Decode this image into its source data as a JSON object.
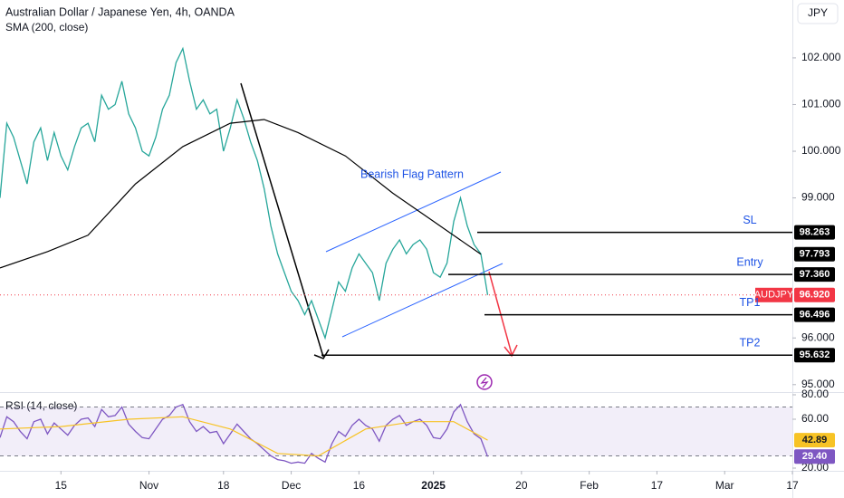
{
  "chart_data": [
    {
      "type": "line",
      "title": "Australian Dollar / Japanese Yen, 4h, OANDA",
      "currency": "JPY",
      "x": [
        -9,
        -8,
        -7,
        -6,
        -5,
        -4,
        -3,
        -2,
        -1,
        0,
        1,
        2,
        3,
        4,
        5,
        6,
        7,
        8,
        9,
        10,
        11,
        12,
        13,
        14,
        15,
        16,
        17,
        18,
        19,
        20,
        21,
        22,
        23,
        24,
        25,
        26,
        27,
        28,
        29,
        30,
        31,
        32,
        33,
        34,
        35,
        36,
        37,
        38,
        39,
        40,
        41,
        42,
        43,
        44,
        45,
        46,
        47,
        48,
        49,
        50,
        51,
        52,
        53,
        54,
        55,
        56,
        57,
        58,
        59,
        60,
        61,
        62,
        63
      ],
      "xlim": [
        -9,
        108
      ],
      "xticks": [
        {
          "value": 0,
          "label": "15"
        },
        {
          "value": 13,
          "label": "Nov"
        },
        {
          "value": 24,
          "label": "18"
        },
        {
          "value": 34,
          "label": "Dec"
        },
        {
          "value": 44,
          "label": "16"
        },
        {
          "value": 55,
          "label": "2025"
        },
        {
          "value": 68,
          "label": "20"
        },
        {
          "value": 78,
          "label": "Feb"
        },
        {
          "value": 88,
          "label": "17"
        },
        {
          "value": 98,
          "label": "Mar"
        },
        {
          "value": 108,
          "label": "17"
        }
      ],
      "ylim": [
        94.86,
        103.24
      ],
      "yticks": [
        {
          "value": 95,
          "label": "95.000"
        },
        {
          "value": 96,
          "label": "96.000"
        },
        {
          "value": 99,
          "label": "99.000"
        },
        {
          "value": 100,
          "label": "100.000"
        },
        {
          "value": 101,
          "label": "101.000"
        },
        {
          "value": 102,
          "label": "102.000"
        }
      ],
      "series": [
        {
          "color": "#26a69a",
          "values": [
            99.0,
            100.6,
            100.3,
            99.8,
            99.3,
            100.2,
            100.5,
            99.8,
            100.4,
            99.9,
            99.6,
            100.1,
            100.5,
            100.6,
            100.2,
            101.2,
            100.9,
            101.0,
            101.5,
            100.8,
            100.5,
            100.0,
            99.9,
            100.3,
            100.9,
            101.2,
            101.9,
            102.2,
            101.5,
            100.9,
            101.1,
            100.8,
            100.9,
            100.0,
            100.5,
            101.1,
            100.7,
            100.2,
            99.8,
            99.2,
            98.4,
            97.8,
            97.4,
            97.0,
            96.8,
            96.5,
            96.8,
            96.4,
            96.0,
            96.6,
            97.2,
            97.0,
            97.5,
            97.8,
            97.6,
            97.4,
            96.8,
            97.6,
            97.9,
            98.1,
            97.8,
            98.0,
            98.1,
            97.9,
            97.4,
            97.3,
            97.6,
            98.5,
            99.0,
            98.4,
            98.0,
            97.8,
            96.92
          ]
        },
        {
          "name": "SMA (200, close)",
          "color": "#000000",
          "x": [
            -9,
            -2,
            4,
            11,
            18,
            25,
            30,
            35,
            42,
            49,
            55,
            62
          ],
          "values": [
            97.5,
            97.85,
            98.2,
            99.3,
            100.1,
            100.6,
            100.68,
            100.4,
            99.9,
            99.1,
            98.5,
            97.793
          ],
          "value_labels": [
            null,
            null,
            null,
            null,
            null,
            null,
            null,
            null,
            null,
            null,
            null,
            "97.793"
          ]
        }
      ],
      "last_price": {
        "symbol": "AUDJPY",
        "value": 96.92,
        "value_label": "96.920",
        "color": "#f23645"
      },
      "pattern_label": "Bearish Flag Pattern",
      "levels": [
        {
          "label": "SL",
          "value": 98.263,
          "value_label": "98.263"
        },
        {
          "label": "Entry",
          "value": 97.36,
          "value_label": "97.360"
        },
        {
          "label": "TP1",
          "value": 96.496,
          "value_label": "96.496"
        },
        {
          "label": "TP2",
          "value": 95.632,
          "value_label": "95.632"
        }
      ]
    },
    {
      "type": "line",
      "title": "RSI (14, close)",
      "x": [
        -9,
        -8,
        -7,
        -6,
        -5,
        -4,
        -3,
        -2,
        -1,
        0,
        1,
        2,
        3,
        4,
        5,
        6,
        7,
        8,
        9,
        10,
        11,
        12,
        13,
        14,
        15,
        16,
        17,
        18,
        19,
        20,
        21,
        22,
        23,
        24,
        25,
        26,
        27,
        28,
        29,
        30,
        31,
        32,
        33,
        34,
        35,
        36,
        37,
        38,
        39,
        40,
        41,
        42,
        43,
        44,
        45,
        46,
        47,
        48,
        49,
        50,
        51,
        52,
        53,
        54,
        55,
        56,
        57,
        58,
        59,
        60,
        61,
        62,
        63
      ],
      "xlim": [
        -9,
        108
      ],
      "ylim": [
        20,
        80
      ],
      "yticks": [
        {
          "value": 20,
          "label": "20.00"
        },
        {
          "value": 60,
          "label": "60.00"
        },
        {
          "value": 80,
          "label": "80.00"
        }
      ],
      "bands": [
        30,
        70
      ],
      "series": [
        {
          "color": "#7e57c2",
          "values": [
            45,
            62,
            58,
            50,
            44,
            58,
            60,
            48,
            57,
            52,
            47,
            55,
            60,
            61,
            54,
            68,
            62,
            63,
            70,
            56,
            50,
            45,
            44,
            52,
            60,
            63,
            70,
            72,
            58,
            50,
            54,
            49,
            50,
            40,
            48,
            56,
            50,
            44,
            40,
            35,
            30,
            27,
            26,
            24,
            25,
            24,
            32,
            28,
            25,
            40,
            50,
            46,
            55,
            60,
            55,
            52,
            42,
            55,
            60,
            63,
            55,
            58,
            60,
            55,
            45,
            44,
            52,
            66,
            72,
            58,
            48,
            44,
            29.4
          ],
          "last_label": "29.40"
        },
        {
          "color": "#f7c325",
          "x": [
            -9,
            0,
            10,
            18,
            25,
            32,
            38,
            45,
            52,
            58,
            63
          ],
          "values": [
            52,
            54,
            60,
            62,
            52,
            32,
            30,
            52,
            58,
            58,
            42.89
          ],
          "last_label": "42.89"
        }
      ]
    }
  ]
}
